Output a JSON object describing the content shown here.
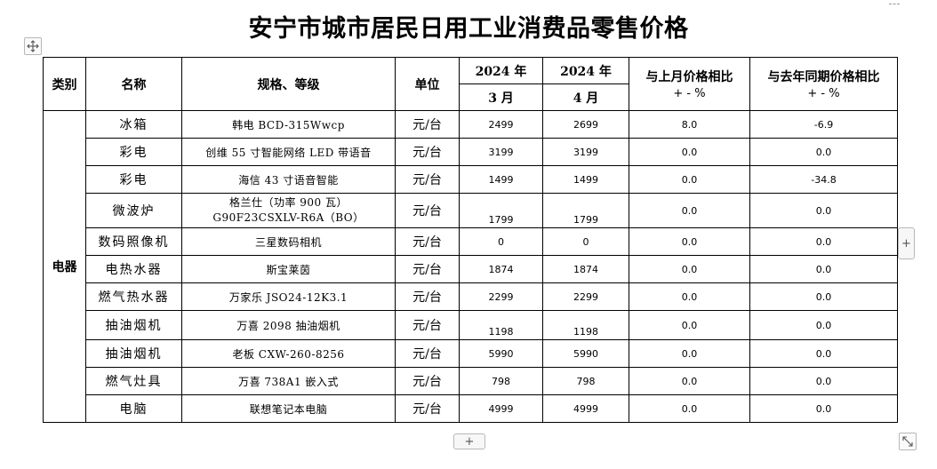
{
  "title": "安宁市城市居民日用工业消费品零售价格",
  "headers": {
    "category": "类别",
    "name": "名称",
    "spec": "规格、等级",
    "unit": "单位",
    "year_a": "2024 年",
    "month_a": "3 月",
    "year_b": "2024 年",
    "month_b": "4 月",
    "mom": "与上月价格相比",
    "mom_sub": "+ - %",
    "yoy": "与去年同期价格相比",
    "yoy_sub": "+ - %"
  },
  "category": "电器",
  "rows": [
    {
      "name": "冰箱",
      "spec": "韩电 BCD-315Wwcp",
      "unit": "元/台",
      "mar": "2499",
      "apr": "2699",
      "mom": "8.0",
      "yoy": "-6.9"
    },
    {
      "name": "彩电",
      "spec": "创维 55 寸智能网络 LED 带语音",
      "unit": "元/台",
      "mar": "3199",
      "apr": "3199",
      "mom": "0.0",
      "yoy": "0.0"
    },
    {
      "name": "彩电",
      "spec": "海信 43 寸语音智能",
      "unit": "元/台",
      "mar": "1499",
      "apr": "1499",
      "mom": "0.0",
      "yoy": "-34.8"
    },
    {
      "name": "微波炉",
      "spec_line1": "格兰仕（功率 900 瓦）",
      "spec_line2": "G90F23CSXLV-R6A（BO）",
      "unit": "元/台",
      "mar": "1799",
      "apr": "1799",
      "mom": "0.0",
      "yoy": "0.0"
    },
    {
      "name": "数码照像机",
      "spec": "三星数码相机",
      "unit": "元/台",
      "mar": "0",
      "apr": "0",
      "mom": "0.0",
      "yoy": "0.0"
    },
    {
      "name": "电热水器",
      "spec": "斯宝莱茵",
      "unit": "元/台",
      "mar": "1874",
      "apr": "1874",
      "mom": "0.0",
      "yoy": "0.0"
    },
    {
      "name": "燃气热水器",
      "spec": "万家乐 JSO24-12K3.1",
      "unit": "元/台",
      "mar": "2299",
      "apr": "2299",
      "mom": "0.0",
      "yoy": "0.0"
    },
    {
      "name": "抽油烟机",
      "spec": "万喜 2098 抽油烟机",
      "unit": "元/台",
      "mar": "1198",
      "apr": "1198",
      "mom": "0.0",
      "yoy": "0.0"
    },
    {
      "name": "抽油烟机",
      "spec": "老板 CXW-260-8256",
      "unit": "元/台",
      "mar": "5990",
      "apr": "5990",
      "mom": "0.0",
      "yoy": "0.0"
    },
    {
      "name": "燃气灶具",
      "spec": "万喜 738A1 嵌入式",
      "unit": "元/台",
      "mar": "798",
      "apr": "798",
      "mom": "0.0",
      "yoy": "0.0"
    },
    {
      "name": "电脑",
      "spec": "联想笔记本电脑",
      "unit": "元/台",
      "mar": "4999",
      "apr": "4999",
      "mom": "0.0",
      "yoy": "0.0"
    }
  ],
  "controls": {
    "add_row": "+",
    "add_col": "+"
  }
}
